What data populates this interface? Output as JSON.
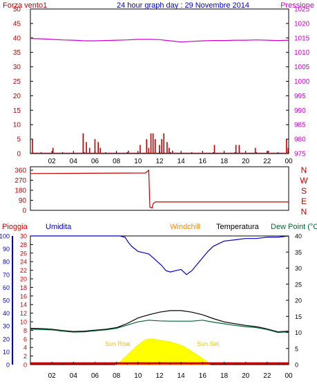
{
  "header": {
    "left_label": "Forza vento1",
    "title": "24 hour graph day : 29 Novembre 2014",
    "right_label": "Pressione"
  },
  "colors": {
    "wind": "#c00000",
    "pressure": "#cc00cc",
    "title": "#0000cc",
    "humidity": "#0000cc",
    "rain": "#cc0000",
    "temperature": "#000000",
    "dewpoint": "#006633",
    "windchill": "#ff8800",
    "solar": "#ffff00",
    "suntext": "#e6c800"
  },
  "chart_data": [
    {
      "type": "bar",
      "title": "24 hour graph day : 29 Novembre 2014",
      "x_ticks": [
        "02",
        "04",
        "06",
        "08",
        "10",
        "12",
        "14",
        "16",
        "18",
        "20",
        "22",
        "00"
      ],
      "xlim": [
        0,
        24
      ],
      "left_axis": {
        "label": "Forza vento1",
        "ylim": [
          0,
          50
        ],
        "ticks": [
          "0",
          "5",
          "10",
          "15",
          "20",
          "25",
          "30",
          "35",
          "40",
          "45",
          "50"
        ]
      },
      "right_axis": {
        "label": "Pressione",
        "ylim": [
          975,
          1025
        ],
        "ticks": [
          "975",
          "980",
          "985",
          "990",
          "995",
          "1000",
          "1005",
          "1010",
          "1015",
          "1020",
          "1025"
        ]
      },
      "series": [
        {
          "name": "Pressione",
          "type": "line",
          "points": [
            [
              0,
              1014.8
            ],
            [
              1,
              1014.7
            ],
            [
              2,
              1014.5
            ],
            [
              3,
              1014.3
            ],
            [
              4,
              1014.2
            ],
            [
              5,
              1014.0
            ],
            [
              6,
              1014.0
            ],
            [
              7,
              1014.1
            ],
            [
              8,
              1014.2
            ],
            [
              9,
              1014.3
            ],
            [
              10,
              1014.5
            ],
            [
              11,
              1014.5
            ],
            [
              12,
              1014.4
            ],
            [
              13,
              1014.0
            ],
            [
              14,
              1013.6
            ],
            [
              15,
              1013.8
            ],
            [
              16,
              1014.0
            ],
            [
              17,
              1014.1
            ],
            [
              18,
              1014.1
            ],
            [
              19,
              1014.2
            ],
            [
              20,
              1014.2
            ],
            [
              21,
              1014.3
            ],
            [
              22,
              1014.2
            ],
            [
              23,
              1014.1
            ],
            [
              24,
              1014.2
            ]
          ]
        },
        {
          "name": "Forza vento1",
          "type": "bar",
          "points": [
            [
              0.2,
              5
            ],
            [
              2.1,
              2
            ],
            [
              4.9,
              7
            ],
            [
              5.2,
              4
            ],
            [
              5.5,
              2
            ],
            [
              6.0,
              5
            ],
            [
              6.3,
              4
            ],
            [
              6.5,
              2
            ],
            [
              9.1,
              1
            ],
            [
              10.2,
              3
            ],
            [
              10.8,
              5
            ],
            [
              11.0,
              2
            ],
            [
              11.2,
              7
            ],
            [
              11.4,
              7
            ],
            [
              11.6,
              5
            ],
            [
              12.0,
              3
            ],
            [
              12.2,
              5
            ],
            [
              12.4,
              7
            ],
            [
              12.7,
              4
            ],
            [
              12.9,
              2
            ],
            [
              13.2,
              1
            ],
            [
              17.1,
              3
            ],
            [
              19.1,
              3
            ],
            [
              19.4,
              3
            ],
            [
              20.9,
              2
            ],
            [
              22.1,
              1
            ],
            [
              23.8,
              5
            ],
            [
              23.95,
              2
            ]
          ]
        }
      ]
    },
    {
      "type": "line",
      "x_ticks": [
        "02",
        "04",
        "06",
        "08",
        "10",
        "12",
        "14",
        "16",
        "18",
        "20",
        "22",
        "00"
      ],
      "xlim": [
        0,
        24
      ],
      "y_axis": {
        "ylim": [
          0,
          360
        ],
        "ticks": [
          "0",
          "90",
          "180",
          "270",
          "360"
        ]
      },
      "compass_labels": [
        "N",
        "W",
        "S",
        "E",
        "N"
      ],
      "series": [
        {
          "type": "line",
          "points": [
            [
              0,
              330
            ],
            [
              10.7,
              335
            ],
            [
              11.0,
              360
            ],
            [
              11.1,
              30
            ],
            [
              11.3,
              20
            ],
            [
              11.4,
              60
            ],
            [
              11.6,
              75
            ],
            [
              12,
              75
            ],
            [
              24,
              75
            ]
          ]
        }
      ]
    },
    {
      "type": "line",
      "legend": [
        "Pioggia",
        "Umidita",
        "Windchill",
        "Temperatura",
        "Dew Point (°C"
      ],
      "x_ticks": [
        "02",
        "04",
        "06",
        "08",
        "10",
        "12",
        "14",
        "16",
        "18",
        "20",
        "22",
        "00"
      ],
      "xlim": [
        0,
        24
      ],
      "humidity_axis": {
        "label": "Umidita",
        "ylim": [
          0,
          100
        ],
        "ticks": [
          "0",
          "10",
          "20",
          "30",
          "40",
          "50",
          "60",
          "70",
          "80",
          "90",
          "100"
        ]
      },
      "rain_axis": {
        "label": "Pioggia",
        "ylim": [
          0,
          30
        ],
        "ticks": [
          "0",
          "2",
          "4",
          "6",
          "8",
          "10",
          "12",
          "14",
          "16",
          "18",
          "20",
          "22",
          "24",
          "26",
          "28",
          "30"
        ]
      },
      "temp_axis": {
        "label": "Temperatura",
        "ylim": [
          0,
          40
        ],
        "ticks": [
          "0",
          "5",
          "10",
          "15",
          "20",
          "25",
          "30",
          "35",
          "40"
        ]
      },
      "annotations": [
        {
          "text": "Sun Rise",
          "x": 8.1
        },
        {
          "text": "Sun Set",
          "x": 16.5
        }
      ],
      "series": [
        {
          "name": "Umidita",
          "type": "line",
          "points": [
            [
              0,
              100
            ],
            [
              7,
              100
            ],
            [
              8.3,
              100
            ],
            [
              8.8,
              99
            ],
            [
              9.1,
              95
            ],
            [
              9.4,
              92
            ],
            [
              9.7,
              90
            ],
            [
              10.0,
              88
            ],
            [
              10.5,
              87
            ],
            [
              11.0,
              86
            ],
            [
              11.4,
              83
            ],
            [
              11.8,
              80
            ],
            [
              12.2,
              77
            ],
            [
              12.6,
              73
            ],
            [
              13.0,
              72
            ],
            [
              13.5,
              73
            ],
            [
              14.0,
              74
            ],
            [
              14.5,
              70
            ],
            [
              15.0,
              73
            ],
            [
              15.5,
              78
            ],
            [
              16.0,
              83
            ],
            [
              16.5,
              88
            ],
            [
              17.0,
              92
            ],
            [
              18.0,
              96
            ],
            [
              19.0,
              97
            ],
            [
              20.0,
              98
            ],
            [
              21.0,
              98
            ],
            [
              22.0,
              99
            ],
            [
              23.0,
              99
            ],
            [
              24.0,
              100
            ]
          ]
        },
        {
          "name": "Temperatura",
          "type": "line",
          "points": [
            [
              0,
              11.3
            ],
            [
              1,
              11.2
            ],
            [
              2,
              11.0
            ],
            [
              3,
              10.6
            ],
            [
              4,
              10.3
            ],
            [
              5,
              10.4
            ],
            [
              6,
              10.7
            ],
            [
              7,
              11.0
            ],
            [
              8,
              11.5
            ],
            [
              9,
              12.8
            ],
            [
              10,
              14.5
            ],
            [
              11,
              15.5
            ],
            [
              12,
              16.3
            ],
            [
              13,
              16.8
            ],
            [
              14,
              16.8
            ],
            [
              15,
              16.3
            ],
            [
              16,
              15.5
            ],
            [
              17,
              14.3
            ],
            [
              18,
              13.3
            ],
            [
              19,
              12.7
            ],
            [
              20,
              12.2
            ],
            [
              21,
              11.8
            ],
            [
              22,
              11.1
            ],
            [
              23,
              10.2
            ],
            [
              24,
              10.4
            ]
          ]
        },
        {
          "name": "Dew Point (°C",
          "type": "line",
          "points": [
            [
              0,
              11.0
            ],
            [
              1,
              10.9
            ],
            [
              2,
              10.8
            ],
            [
              3,
              10.4
            ],
            [
              4,
              10.1
            ],
            [
              5,
              10.2
            ],
            [
              6,
              10.5
            ],
            [
              7,
              10.8
            ],
            [
              8,
              11.3
            ],
            [
              9,
              12.3
            ],
            [
              10,
              13.3
            ],
            [
              11,
              13.8
            ],
            [
              12,
              13.6
            ],
            [
              13,
              13.5
            ],
            [
              14,
              13.5
            ],
            [
              15,
              13.5
            ],
            [
              16,
              13.8
            ],
            [
              17,
              13.2
            ],
            [
              18,
              12.7
            ],
            [
              19,
              12.2
            ],
            [
              20,
              11.8
            ],
            [
              21,
              11.5
            ],
            [
              22,
              10.9
            ],
            [
              23,
              10.0
            ],
            [
              24,
              10.2
            ]
          ]
        },
        {
          "name": "Windchill",
          "type": "line",
          "points": [
            [
              0,
              0.4
            ],
            [
              24,
              0.4
            ]
          ]
        },
        {
          "name": "Solar",
          "type": "area",
          "points": [
            [
              7.9,
              0
            ],
            [
              8.3,
              0.6
            ],
            [
              8.8,
              1.8
            ],
            [
              9.3,
              3.0
            ],
            [
              9.8,
              4.2
            ],
            [
              10.3,
              5.2
            ],
            [
              10.8,
              5.9
            ],
            [
              11.3,
              6.0
            ],
            [
              11.8,
              5.8
            ],
            [
              12.3,
              5.6
            ],
            [
              12.8,
              5.4
            ],
            [
              13.3,
              5.1
            ],
            [
              13.8,
              4.7
            ],
            [
              14.3,
              4.2
            ],
            [
              14.8,
              3.4
            ],
            [
              15.3,
              2.6
            ],
            [
              15.8,
              1.8
            ],
            [
              16.3,
              0.9
            ],
            [
              16.7,
              0
            ]
          ]
        }
      ]
    }
  ]
}
